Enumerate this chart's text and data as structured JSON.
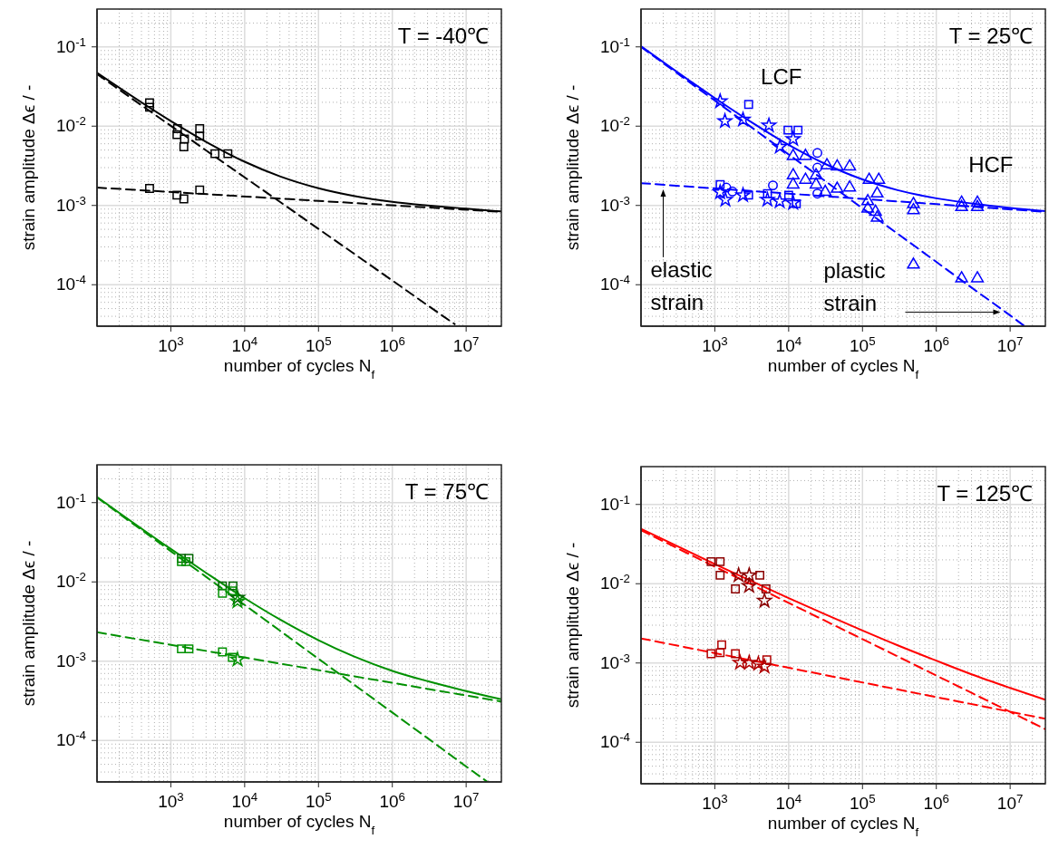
{
  "chart_data": [
    {
      "type": "scatter",
      "title": "T = -40℃",
      "xlabel": "number of cycles N$_{f}$",
      "ylabel": "strain amplitude Δϵ / -",
      "log": "xy",
      "grid": true,
      "xlim": [
        100,
        30000000
      ],
      "ylim": [
        3e-05,
        0.3
      ],
      "xticks": [
        {
          "value": 1000,
          "label": "10$^{3}$"
        },
        {
          "value": 10000,
          "label": "10$^{4}$"
        },
        {
          "value": 100000,
          "label": "10$^{5}$"
        },
        {
          "value": 1000000,
          "label": "10$^{6}$"
        },
        {
          "value": 10000000,
          "label": "10$^{7}$"
        }
      ],
      "yticks": [
        {
          "value": 0.0001,
          "label": "10$^{-4}$"
        },
        {
          "value": 0.001,
          "label": "10$^{-3}$"
        },
        {
          "value": 0.01,
          "label": "10$^{-2}$"
        },
        {
          "value": 0.1,
          "label": "10$^{-1}$"
        }
      ],
      "series": [
        {
          "type": "line",
          "color": "#000000",
          "line_style": "solid",
          "marker": "none",
          "x": [
            100,
            1000,
            3000,
            10000,
            30000,
            100000,
            300000,
            1000000,
            3000000,
            10000000,
            30000000
          ],
          "values": [
            0.0471,
            0.0116,
            0.00634,
            0.00356,
            0.00233,
            0.00165,
            0.00132,
            0.00111,
            0.001,
            0.00091,
            0.00084
          ]
        },
        {
          "type": "line",
          "color": "#000000",
          "line_style": "dashed",
          "marker": "none",
          "x": [
            100,
            1000,
            3000,
            10000,
            30000,
            100000,
            300000,
            1000000,
            3000000,
            7000000
          ],
          "values": [
            0.0454,
            0.0101,
            0.00495,
            0.00226,
            0.00111,
            0.000506,
            0.000248,
            0.000113,
            5.5e-05,
            3.18e-05
          ]
        },
        {
          "type": "line",
          "color": "#000000",
          "line_style": "dashed",
          "marker": "none",
          "x": [
            100,
            30000000
          ],
          "values": [
            0.00168,
            0.00083
          ]
        },
        {
          "type": "scatter",
          "color": "#000000",
          "marker": "square",
          "x": [
            515,
            1230,
            1530,
            2460,
            3960,
            5920
          ],
          "values": [
            0.0197,
            0.0093,
            0.0069,
            0.0093,
            0.0045,
            0.0045
          ]
        },
        {
          "type": "scatter",
          "color": "#000000",
          "marker": "square",
          "x": [
            515,
            1210,
            1500,
            2460
          ],
          "values": [
            0.0173,
            0.0078,
            0.0055,
            0.0075
          ]
        },
        {
          "type": "scatter",
          "color": "#000000",
          "marker": "square",
          "x": [
            515,
            1210,
            1500,
            2460
          ],
          "values": [
            0.00164,
            0.00135,
            0.00121,
            0.00157
          ]
        }
      ]
    },
    {
      "type": "scatter",
      "title": "T = 25℃",
      "xlabel": "number of cycles N$_{f}$",
      "ylabel": "strain amplitude Δϵ / -",
      "log": "xy",
      "grid": true,
      "xlim": [
        100,
        30000000
      ],
      "ylim": [
        3e-05,
        0.3
      ],
      "xticks": [
        {
          "value": 1000,
          "label": "10$^{3}$"
        },
        {
          "value": 10000,
          "label": "10$^{4}$"
        },
        {
          "value": 100000,
          "label": "10$^{5}$"
        },
        {
          "value": 1000000,
          "label": "10$^{6}$"
        },
        {
          "value": 10000000,
          "label": "10$^{7}$"
        }
      ],
      "yticks": [
        {
          "value": 0.0001,
          "label": "10$^{-4}$"
        },
        {
          "value": 0.001,
          "label": "10$^{-3}$"
        },
        {
          "value": 0.01,
          "label": "10$^{-2}$"
        },
        {
          "value": 0.1,
          "label": "10$^{-1}$"
        }
      ],
      "annotations": [
        "LCF",
        "HCF",
        {
          "text": "elastic strain",
          "x": 200,
          "y": 0.0016
        },
        {
          "text": "plastic strain",
          "x": 7400000,
          "y": 4.5e-05
        }
      ],
      "series": [
        {
          "type": "line",
          "color": "#0000ff",
          "line_style": "solid",
          "marker": "none",
          "x": [
            100,
            1000,
            3000,
            10000,
            30000,
            100000,
            300000,
            1000000,
            3000000,
            10000000,
            30000000
          ],
          "values": [
            0.102,
            0.0226,
            0.0115,
            0.0058,
            0.0034,
            0.00213,
            0.00156,
            0.00123,
            0.00106,
            0.00093,
            0.00085
          ]
        },
        {
          "type": "line",
          "color": "#0000ff",
          "line_style": "dashed",
          "marker": "none",
          "x": [
            100,
            1000,
            3000,
            10000,
            30000,
            100000,
            300000,
            1000000,
            3000000,
            10000000,
            15700000
          ],
          "values": [
            0.1,
            0.021,
            0.00998,
            0.0044,
            0.00209,
            0.00092,
            0.00044,
            0.000194,
            9.2e-05,
            4.1e-05,
            3e-05
          ]
        },
        {
          "type": "line",
          "color": "#0000ff",
          "line_style": "dashed",
          "marker": "none",
          "x": [
            100,
            30000000
          ],
          "values": [
            0.00191,
            0.00083
          ]
        },
        {
          "type": "scatter",
          "color": "#0000ff",
          "marker": "star",
          "x": [
            1180,
            1370,
            2410,
            5400,
            7600,
            11500
          ],
          "values": [
            0.0206,
            0.0116,
            0.0121,
            0.0102,
            0.0055,
            0.0069
          ]
        },
        {
          "type": "scatter",
          "color": "#0000ff",
          "marker": "square",
          "x": [
            2870,
            9800,
            13400
          ],
          "values": [
            0.0188,
            0.0089,
            0.0089
          ]
        },
        {
          "type": "scatter",
          "color": "#0000ff",
          "marker": "circle",
          "x": [
            24500
          ],
          "values": [
            0.0046
          ]
        },
        {
          "type": "scatter",
          "color": "#0000ff",
          "marker": "triangle",
          "x": [
            11500,
            16900,
            33000,
            45400,
            67000,
            123000,
            166000,
            490000,
            2200000,
            3600000
          ],
          "values": [
            0.0042,
            0.0042,
            0.0032,
            0.0031,
            0.0031,
            0.0021,
            0.0021,
            0.00104,
            0.00108,
            0.00108
          ]
        },
        {
          "type": "scatter",
          "color": "#0000ff",
          "marker": "square",
          "x": [
            1180,
            2870,
            5160,
            10000,
            12700
          ],
          "values": [
            0.00183,
            0.00135,
            0.00141,
            0.00135,
            0.00105
          ]
        },
        {
          "type": "scatter",
          "color": "#0000ff",
          "marker": "circle",
          "x": [
            1430,
            1730,
            6120,
            24500,
            24500
          ],
          "values": [
            0.00168,
            0.0015,
            0.00179,
            0.003,
            0.00141
          ]
        },
        {
          "type": "scatter",
          "color": "#0000ff",
          "marker": "star",
          "x": [
            1180,
            1390,
            2410,
            5160,
            7560,
            11500
          ],
          "values": [
            0.00147,
            0.00118,
            0.00135,
            0.00118,
            0.00113,
            0.00108
          ]
        },
        {
          "type": "scatter",
          "color": "#0000ff",
          "marker": "triangle",
          "x": [
            11500,
            16900,
            23500,
            45400,
            67000,
            158000,
            490000,
            2200000,
            3600000
          ],
          "values": [
            0.0024,
            0.0021,
            0.0024,
            0.00162,
            0.00168,
            0.00141,
            0.00087,
            0.00095,
            0.00095
          ]
        },
        {
          "type": "scatter",
          "color": "#0000ff",
          "marker": "triangle",
          "x": [
            11500,
            23500,
            31300,
            118000,
            118000,
            150000,
            158000,
            490000,
            2200000,
            3600000
          ],
          "values": [
            0.00183,
            0.00183,
            0.00148,
            0.00113,
            0.00091,
            0.00083,
            0.0007,
            0.000179,
            0.00012,
            0.00012
          ]
        }
      ]
    },
    {
      "type": "scatter",
      "title": "T = 75℃",
      "xlabel": "number of cycles N$_{f}$",
      "ylabel": "strain amplitude Δϵ / -",
      "log": "xy",
      "grid": true,
      "xlim": [
        100,
        30000000
      ],
      "ylim": [
        3e-05,
        0.3
      ],
      "xticks": [
        {
          "value": 1000,
          "label": "10$^{3}$"
        },
        {
          "value": 10000,
          "label": "10$^{4}$"
        },
        {
          "value": 100000,
          "label": "10$^{5}$"
        },
        {
          "value": 1000000,
          "label": "10$^{6}$"
        },
        {
          "value": 10000000,
          "label": "10$^{7}$"
        }
      ],
      "yticks": [
        {
          "value": 0.0001,
          "label": "10$^{-4}$"
        },
        {
          "value": 0.001,
          "label": "10$^{-3}$"
        },
        {
          "value": 0.01,
          "label": "10$^{-2}$"
        },
        {
          "value": 0.1,
          "label": "10$^{-1}$"
        }
      ],
      "series": [
        {
          "type": "line",
          "color": "#009000",
          "line_style": "solid",
          "marker": "none",
          "x": [
            100,
            1000,
            3000,
            10000,
            30000,
            100000,
            300000,
            1000000,
            3000000,
            10000000,
            30000000
          ],
          "values": [
            0.118,
            0.026,
            0.013,
            0.00623,
            0.00336,
            0.00184,
            0.00115,
            0.000755,
            0.00056,
            0.00042,
            0.00033
          ]
        },
        {
          "type": "line",
          "color": "#009000",
          "line_style": "dashed",
          "marker": "none",
          "x": [
            100,
            1000,
            3000,
            10000,
            30000,
            100000,
            300000,
            1000000,
            3000000,
            10000000,
            19500000
          ],
          "values": [
            0.116,
            0.0244,
            0.0116,
            0.00512,
            0.00243,
            0.00107,
            0.00051,
            0.000225,
            0.000107,
            4.7e-05,
            3e-05
          ]
        },
        {
          "type": "line",
          "color": "#009000",
          "line_style": "dashed",
          "marker": "none",
          "x": [
            100,
            30000000
          ],
          "values": [
            0.00232,
            0.00031
          ]
        },
        {
          "type": "scatter",
          "color": "#006400",
          "marker": "square",
          "x": [
            1390,
            1760,
            5000,
            6950
          ],
          "values": [
            0.0198,
            0.0198,
            0.0089,
            0.0089
          ]
        },
        {
          "type": "scatter",
          "color": "#006400",
          "marker": "star",
          "x": [
            8000
          ],
          "values": [
            0.0063
          ]
        },
        {
          "type": "scatter",
          "color": "#009000",
          "marker": "square",
          "x": [
            1390,
            1600,
            5000,
            6800
          ],
          "values": [
            0.018,
            0.018,
            0.0072,
            0.0077
          ]
        },
        {
          "type": "scatter",
          "color": "#009000",
          "marker": "star",
          "x": [
            8000
          ],
          "values": [
            0.0057
          ]
        },
        {
          "type": "scatter",
          "color": "#009000",
          "marker": "square",
          "x": [
            1390,
            1760,
            5000,
            6800
          ],
          "values": [
            0.00143,
            0.00143,
            0.00131,
            0.00112
          ]
        },
        {
          "type": "scatter",
          "color": "#009000",
          "marker": "star",
          "x": [
            8000
          ],
          "values": [
            0.00105
          ]
        }
      ]
    },
    {
      "type": "scatter",
      "title": "T = 125℃",
      "xlabel": "number of cycles N$_{f}$",
      "ylabel": "strain amplitude Δϵ / -",
      "log": "xy",
      "grid": true,
      "xlim": [
        100,
        30000000
      ],
      "ylim": [
        3e-05,
        0.3
      ],
      "xticks": [
        {
          "value": 1000,
          "label": "10$^{3}$"
        },
        {
          "value": 10000,
          "label": "10$^{4}$"
        },
        {
          "value": 100000,
          "label": "10$^{5}$"
        },
        {
          "value": 1000000,
          "label": "10$^{6}$"
        },
        {
          "value": 10000000,
          "label": "10$^{7}$"
        }
      ],
      "yticks": [
        {
          "value": 0.0001,
          "label": "10$^{-4}$"
        },
        {
          "value": 0.001,
          "label": "10$^{-3}$"
        },
        {
          "value": 0.01,
          "label": "10$^{-2}$"
        },
        {
          "value": 0.1,
          "label": "10$^{-1}$"
        }
      ],
      "series": [
        {
          "type": "line",
          "color": "#ff0000",
          "line_style": "solid",
          "marker": "none",
          "x": [
            100,
            1000,
            3000,
            10000,
            30000,
            100000,
            300000,
            1000000,
            3000000,
            10000000,
            30000000
          ],
          "values": [
            0.0492,
            0.0177,
            0.011,
            0.0066,
            0.00418,
            0.00257,
            0.00167,
            0.00107,
            0.00072,
            0.000485,
            0.000344
          ]
        },
        {
          "type": "line",
          "color": "#ff0000",
          "line_style": "dashed",
          "marker": "none",
          "x": [
            100,
            1000,
            3000,
            10000,
            30000,
            100000,
            300000,
            1000000,
            3000000,
            10000000,
            30000000
          ],
          "values": [
            0.0472,
            0.0164,
            0.00995,
            0.00573,
            0.00347,
            0.002,
            0.00121,
            0.000695,
            0.00042,
            0.000242,
            0.000146
          ]
        },
        {
          "type": "line",
          "color": "#ff0000",
          "line_style": "dashed",
          "marker": "none",
          "x": [
            100,
            30000000
          ],
          "values": [
            0.00204,
            0.000198
          ]
        },
        {
          "type": "scatter",
          "color": "#8b0000",
          "marker": "square",
          "x": [
            890,
            1180,
            1180,
            1900,
            4070,
            4930
          ],
          "values": [
            0.019,
            0.019,
            0.0128,
            0.0086,
            0.0128,
            0.0086
          ]
        },
        {
          "type": "scatter",
          "color": "#8b0000",
          "marker": "star",
          "x": [
            2100,
            2920,
            2920,
            4700
          ],
          "values": [
            0.0128,
            0.0128,
            0.0094,
            0.0061
          ]
        },
        {
          "type": "scatter",
          "color": "#b00000",
          "marker": "square",
          "x": [
            890,
            1240,
            1180,
            1900,
            5060
          ],
          "values": [
            0.00131,
            0.0017,
            0.00135,
            0.00131,
            0.0011
          ]
        },
        {
          "type": "scatter",
          "color": "#b00000",
          "marker": "star",
          "x": [
            2200,
            2920,
            3890,
            4700
          ],
          "values": [
            0.00101,
            0.00101,
            0.00098,
            0.0009
          ]
        }
      ]
    }
  ]
}
